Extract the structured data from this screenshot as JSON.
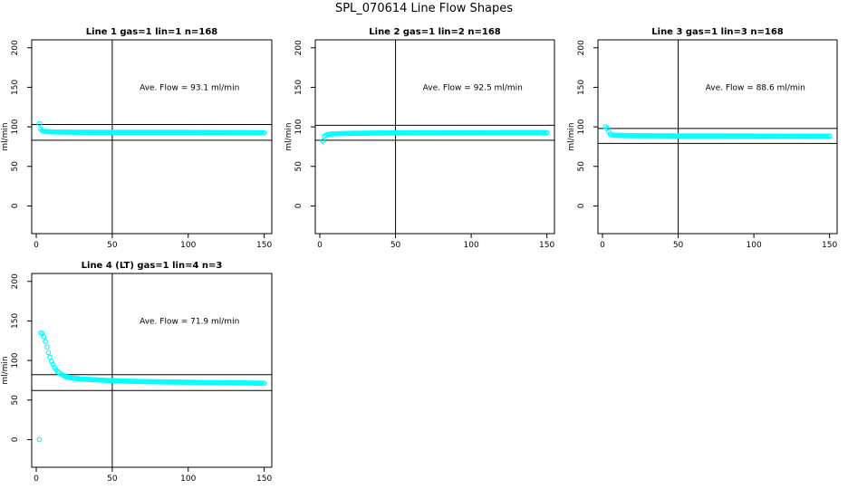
{
  "page": {
    "title": "SPL_070614  Line Flow Shapes"
  },
  "colors": {
    "points": "#00ffff",
    "lines": "#000000",
    "frame": "#000000"
  },
  "chart_data": [
    {
      "type": "scatter",
      "title": "Line 1 gas=1 lin=1 n=168",
      "xlabel": "",
      "ylabel": "ml/min",
      "xlim": [
        -3,
        155
      ],
      "ylim": [
        -35,
        210
      ],
      "xticks": [
        0,
        50,
        100,
        150
      ],
      "yticks": [
        0,
        50,
        100,
        150,
        200
      ],
      "annotation": "Ave. Flow =  93.1  ml/min",
      "vline": 50,
      "hlines": [
        103,
        83
      ],
      "series": [
        {
          "x": [
            2,
            3,
            4,
            5,
            6,
            8,
            10,
            15,
            20,
            30,
            40,
            60,
            80,
            100,
            120,
            140,
            150
          ],
          "y": [
            104,
            97,
            95,
            94.5,
            94,
            94,
            93.5,
            93.5,
            93.3,
            93.2,
            93.1,
            93,
            93,
            93,
            92.8,
            92.7,
            92.5
          ]
        }
      ]
    },
    {
      "type": "scatter",
      "title": "Line 2 gas=1 lin=2 n=168",
      "xlabel": "",
      "ylabel": "ml/min",
      "xlim": [
        -3,
        155
      ],
      "ylim": [
        -35,
        210
      ],
      "xticks": [
        0,
        50,
        100,
        150
      ],
      "yticks": [
        0,
        50,
        100,
        150,
        200
      ],
      "annotation": "Ave. Flow =  92.5  ml/min",
      "vline": 50,
      "hlines": [
        102,
        83
      ],
      "series": [
        {
          "x": [
            2,
            3,
            4,
            5,
            6,
            8,
            10,
            15,
            20,
            30,
            40,
            60,
            80,
            100,
            120,
            140,
            150
          ],
          "y": [
            82,
            88,
            89.5,
            90,
            90.5,
            91,
            91.2,
            91.5,
            91.8,
            92,
            92.2,
            92.4,
            92.5,
            92.6,
            92.7,
            92.7,
            92.7
          ]
        }
      ]
    },
    {
      "type": "scatter",
      "title": "Line 3 gas=1 lin=3 n=168",
      "xlabel": "",
      "ylabel": "ml/min",
      "xlim": [
        -3,
        155
      ],
      "ylim": [
        -35,
        210
      ],
      "xticks": [
        0,
        50,
        100,
        150
      ],
      "yticks": [
        0,
        50,
        100,
        150,
        200
      ],
      "annotation": "Ave. Flow =  88.6  ml/min",
      "vline": 50,
      "hlines": [
        98,
        79
      ],
      "series": [
        {
          "x": [
            2,
            3,
            4,
            5,
            6,
            8,
            10,
            15,
            20,
            30,
            40,
            60,
            80,
            100,
            120,
            140,
            150
          ],
          "y": [
            100,
            98,
            94,
            91,
            90,
            89.5,
            89.3,
            89,
            88.8,
            88.7,
            88.6,
            88.5,
            88.5,
            88.4,
            88.4,
            88.3,
            88.3
          ]
        }
      ]
    },
    {
      "type": "scatter",
      "title": "Line 4 (LT) gas=1 lin=4 n=3",
      "xlabel": "",
      "ylabel": "ml/min",
      "xlim": [
        -3,
        155
      ],
      "ylim": [
        -35,
        210
      ],
      "xticks": [
        0,
        50,
        100,
        150
      ],
      "yticks": [
        0,
        50,
        100,
        150,
        200
      ],
      "annotation": "Ave. Flow =  71.9  ml/min",
      "vline": 50,
      "hlines": [
        82,
        62
      ],
      "series": [
        {
          "x": [
            2,
            3,
            4,
            5,
            6,
            7,
            8,
            9,
            10,
            11,
            12,
            14,
            16,
            18,
            20,
            25,
            30,
            40,
            50,
            60,
            80,
            100,
            120,
            140,
            150
          ],
          "y": [
            0,
            135,
            134,
            130,
            124,
            117,
            110,
            104,
            99,
            95,
            91,
            86,
            83,
            81,
            79,
            77.5,
            76.5,
            75.5,
            74.5,
            73.8,
            73,
            72.5,
            72,
            71.5,
            71.2
          ]
        }
      ]
    }
  ]
}
